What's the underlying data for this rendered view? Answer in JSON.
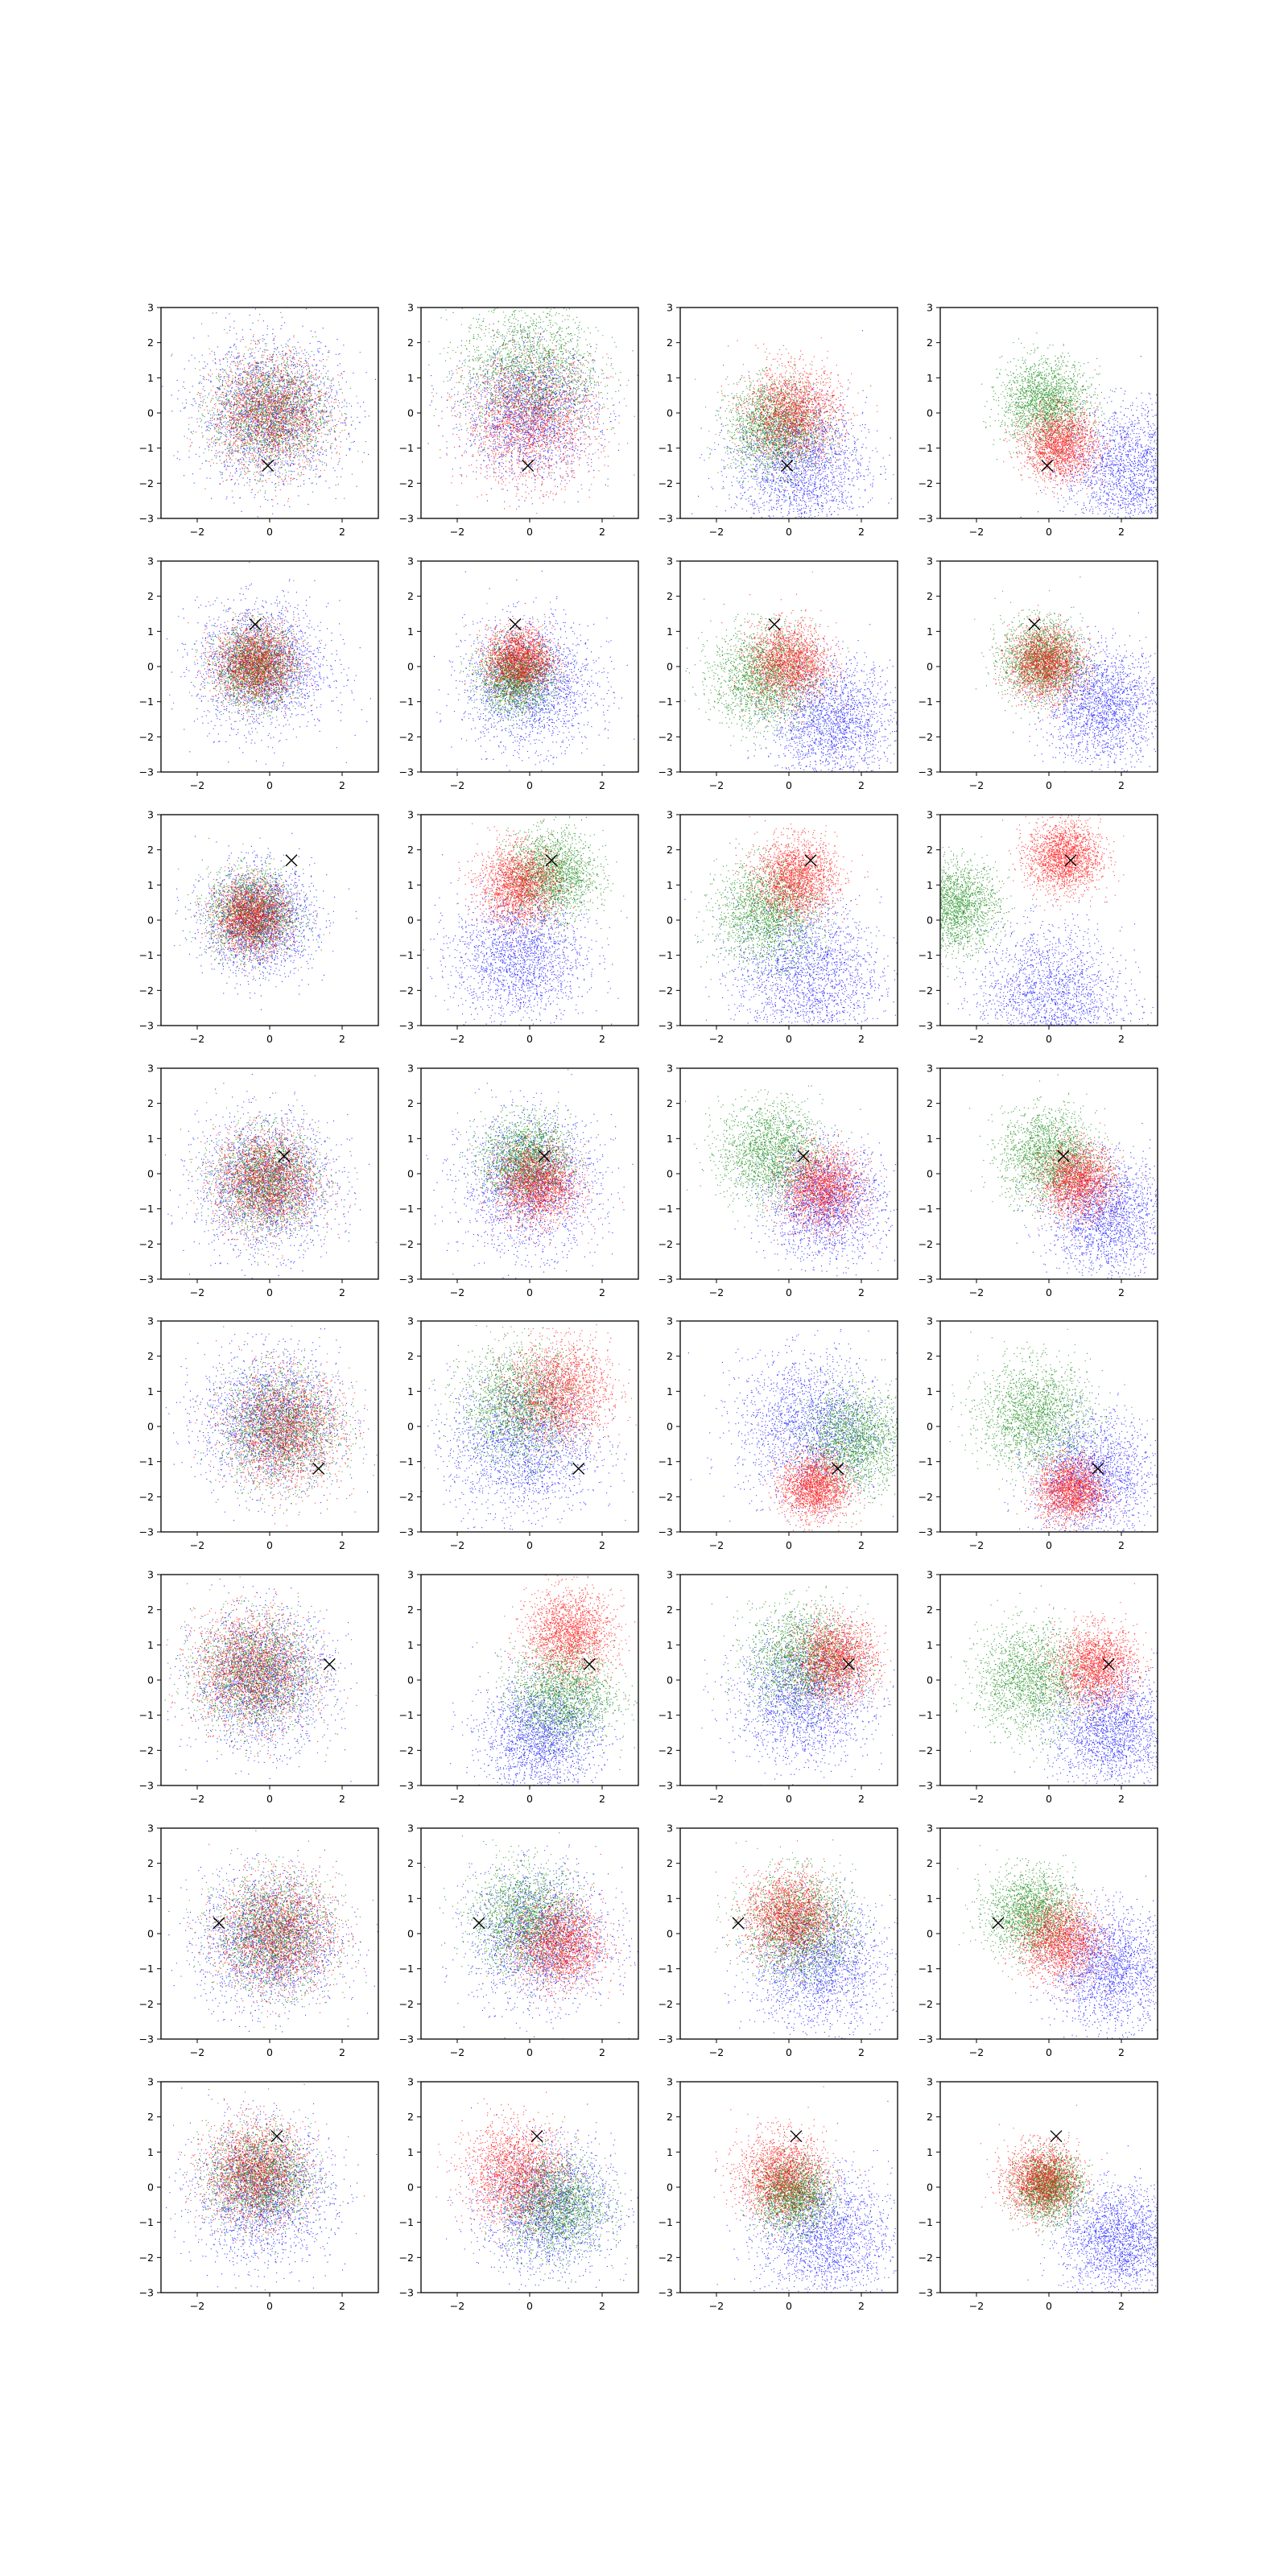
{
  "chart_data": {
    "type": "scatter",
    "layout_grid": {
      "rows": 8,
      "cols": 4
    },
    "xlim": [
      -3,
      3
    ],
    "ylim": [
      -3,
      3
    ],
    "xticks": [
      -2,
      0,
      2
    ],
    "yticks": [
      -3,
      -2,
      -1,
      0,
      1,
      2,
      3
    ],
    "xtick_labels": [
      "−2",
      "0",
      "2"
    ],
    "ytick_labels": [
      "−3",
      "−2",
      "−1",
      "0",
      "1",
      "2",
      "3"
    ],
    "grid": false,
    "legend": "none",
    "colors": {
      "series_1": "#0000ff",
      "series_2": "#008000",
      "series_3": "#ff0000",
      "marker": "#000000"
    },
    "marker_symbol": "x",
    "points_per_series": 2000,
    "rows": [
      {
        "marker": [
          -0.05,
          -1.5
        ],
        "panels": [
          [
            [
              0,
              0,
              1.0
            ],
            [
              0,
              0,
              0.8
            ],
            [
              0,
              0,
              0.8
            ]
          ],
          [
            [
              0,
              0,
              0.9
            ],
            [
              0,
              1.2,
              0.95
            ],
            [
              0,
              -0.2,
              0.9
            ]
          ],
          [
            [
              0.3,
              -1.5,
              0.9
            ],
            [
              -0.4,
              -0.4,
              0.65
            ],
            [
              0.1,
              0.0,
              0.65
            ]
          ],
          [
            [
              2.2,
              -1.6,
              0.9
            ],
            [
              -0.1,
              0.3,
              0.6
            ],
            [
              0.3,
              -0.9,
              0.5
            ]
          ]
        ]
      },
      {
        "marker": [
          -0.4,
          1.2
        ],
        "panels": [
          [
            [
              -0.2,
              0,
              0.9
            ],
            [
              -0.4,
              0,
              0.55
            ],
            [
              -0.4,
              0.1,
              0.55
            ]
          ],
          [
            [
              0,
              -0.5,
              0.9
            ],
            [
              -0.4,
              -0.3,
              0.5
            ],
            [
              -0.3,
              0.2,
              0.45
            ]
          ],
          [
            [
              1.2,
              -1.6,
              0.85
            ],
            [
              -0.7,
              -0.3,
              0.7
            ],
            [
              0,
              0.1,
              0.55
            ]
          ],
          [
            [
              1.5,
              -1.1,
              0.8
            ],
            [
              -0.2,
              0.2,
              0.55
            ],
            [
              -0.1,
              0.1,
              0.5
            ]
          ]
        ]
      },
      {
        "marker": [
          0.6,
          1.7
        ],
        "panels": [
          [
            [
              -0.3,
              0,
              0.75
            ],
            [
              -0.5,
              0.2,
              0.6
            ],
            [
              -0.5,
              0.1,
              0.5
            ]
          ],
          [
            [
              -0.3,
              -1.0,
              0.9
            ],
            [
              0.6,
              1.3,
              0.6
            ],
            [
              -0.3,
              1.0,
              0.55
            ]
          ],
          [
            [
              0.5,
              -1.5,
              1.0
            ],
            [
              -0.6,
              0.2,
              0.7
            ],
            [
              0.2,
              1.2,
              0.55
            ]
          ],
          [
            [
              0.0,
              -2.2,
              1.0
            ],
            [
              -2.6,
              0.4,
              0.6
            ],
            [
              0.4,
              1.8,
              0.5
            ]
          ]
        ]
      },
      {
        "marker": [
          0.4,
          0.5
        ],
        "panels": [
          [
            [
              -0.1,
              -0.3,
              0.95
            ],
            [
              -0.1,
              -0.2,
              0.7
            ],
            [
              -0.1,
              -0.2,
              0.7
            ]
          ],
          [
            [
              0,
              -0.3,
              0.95
            ],
            [
              -0.1,
              0.4,
              0.6
            ],
            [
              0.2,
              -0.3,
              0.55
            ]
          ],
          [
            [
              1.0,
              -0.8,
              0.8
            ],
            [
              -0.5,
              0.6,
              0.7
            ],
            [
              0.9,
              -0.4,
              0.55
            ]
          ],
          [
            [
              1.6,
              -1.2,
              0.8
            ],
            [
              0.0,
              0.5,
              0.65
            ],
            [
              0.8,
              -0.2,
              0.5
            ]
          ]
        ]
      },
      {
        "marker": [
          1.35,
          -1.2
        ],
        "panels": [
          [
            [
              0.0,
              0.2,
              0.95
            ],
            [
              0.3,
              0.0,
              0.8
            ],
            [
              0.4,
              -0.1,
              0.8
            ]
          ],
          [
            [
              -0.2,
              -0.5,
              1.0
            ],
            [
              -0.3,
              0.6,
              0.8
            ],
            [
              0.8,
              1.0,
              0.7
            ]
          ],
          [
            [
              0.6,
              0.0,
              1.0
            ],
            [
              1.8,
              -0.4,
              0.7
            ],
            [
              0.7,
              -1.7,
              0.45
            ]
          ],
          [
            [
              1.2,
              -1.4,
              0.85
            ],
            [
              -0.4,
              0.3,
              0.75
            ],
            [
              0.6,
              -1.8,
              0.45
            ]
          ]
        ]
      },
      {
        "marker": [
          1.65,
          0.45
        ],
        "panels": [
          [
            [
              -0.2,
              0.0,
              0.95
            ],
            [
              -0.4,
              0.2,
              0.8
            ],
            [
              -0.5,
              0.3,
              0.8
            ]
          ],
          [
            [
              0.3,
              -1.6,
              0.8
            ],
            [
              0.9,
              -0.4,
              0.7
            ],
            [
              1.1,
              1.3,
              0.6
            ]
          ],
          [
            [
              0.4,
              -0.5,
              0.9
            ],
            [
              0.4,
              0.6,
              0.75
            ],
            [
              1.3,
              0.6,
              0.55
            ]
          ],
          [
            [
              1.7,
              -1.4,
              0.8
            ],
            [
              -0.5,
              0.0,
              0.75
            ],
            [
              1.3,
              0.4,
              0.55
            ]
          ]
        ]
      },
      {
        "marker": [
          -1.4,
          0.3
        ],
        "panels": [
          [
            [
              0.0,
              -0.2,
              0.95
            ],
            [
              0.1,
              0.0,
              0.8
            ],
            [
              0.2,
              0.0,
              0.8
            ]
          ],
          [
            [
              0.3,
              -0.1,
              0.95
            ],
            [
              -0.1,
              0.4,
              0.75
            ],
            [
              0.8,
              -0.3,
              0.6
            ]
          ],
          [
            [
              0.8,
              -0.9,
              0.9
            ],
            [
              0.3,
              0.2,
              0.75
            ],
            [
              0.0,
              0.5,
              0.6
            ]
          ],
          [
            [
              1.7,
              -1.0,
              0.8
            ],
            [
              -0.5,
              0.6,
              0.6
            ],
            [
              0.3,
              -0.2,
              0.55
            ]
          ]
        ]
      },
      {
        "marker": [
          0.2,
          1.45
        ],
        "panels": [
          [
            [
              -0.2,
              -0.2,
              0.95
            ],
            [
              -0.3,
              0.3,
              0.7
            ],
            [
              -0.4,
              0.4,
              0.7
            ]
          ],
          [
            [
              0.5,
              -0.6,
              0.9
            ],
            [
              0.7,
              -0.5,
              0.7
            ],
            [
              -0.4,
              0.4,
              0.7
            ]
          ],
          [
            [
              1.0,
              -1.4,
              0.9
            ],
            [
              0.1,
              -0.2,
              0.5
            ],
            [
              -0.2,
              0.3,
              0.6
            ]
          ],
          [
            [
              1.9,
              -1.5,
              0.75
            ],
            [
              0.0,
              0.0,
              0.45
            ],
            [
              -0.2,
              0.2,
              0.5
            ]
          ]
        ]
      }
    ]
  }
}
